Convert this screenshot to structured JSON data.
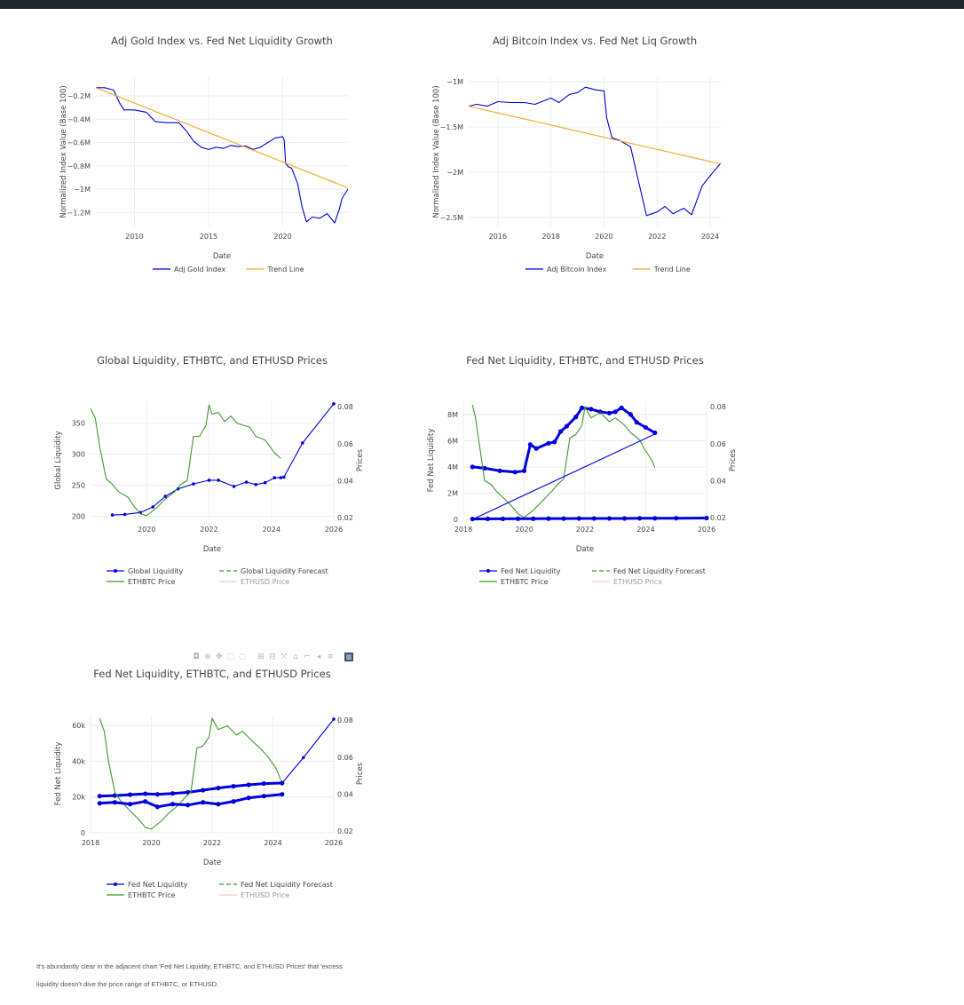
{
  "page": {
    "footer_line1": "It's abundantly clear in the adjacent chart 'Fed Net Liquidity, ETHBTC, and ETHUSD Prices' that 'excess",
    "footer_line2": "liquidity doesn't dive the price range of ETHBTC, or ETHUSD."
  },
  "modebar": {
    "icons": [
      "camera-icon",
      "zoom-icon",
      "pan-icon",
      "box-select-icon",
      "lasso-icon",
      "zoom-in-icon",
      "zoom-out-icon",
      "autoscale-icon",
      "reset-axes-icon",
      "spike-lines-icon",
      "hover-closest-icon",
      "hover-compare-icon",
      "plotly-logo-icon"
    ]
  },
  "colors": {
    "blue": "#0000dd",
    "orange": "#f5a623",
    "green": "#3c9a2c",
    "pink": "#f0a0a0",
    "grid": "#eeeeee"
  },
  "chart_data": [
    {
      "id": "gold",
      "type": "line",
      "title": "Adj Gold Index vs. Fed Net Liquidity Growth",
      "xlabel": "Date",
      "ylabel": "Normalized Index Value (Base 100)",
      "xlim": [
        2007.4,
        2024.4
      ],
      "ylim": [
        -1320000,
        -40000
      ],
      "x_ticks": [
        2010,
        2015,
        2020
      ],
      "y_ticks": [
        -200000,
        -400000,
        -600000,
        -800000,
        -1000000,
        -1200000
      ],
      "y_tick_labels": [
        "−0.2M",
        "−0.4M",
        "−0.6M",
        "−0.8M",
        "−1M",
        "−1.2M"
      ],
      "legend_position": "bottom-center",
      "series": [
        {
          "name": "Adj Gold Index",
          "color": "#0000dd",
          "x": [
            2007.4,
            2008,
            2008.6,
            2009,
            2009.3,
            2010,
            2010.8,
            2011.4,
            2012.2,
            2013,
            2013.5,
            2014,
            2014.5,
            2015,
            2015.5,
            2016,
            2016.5,
            2017,
            2017.5,
            2018,
            2018.5,
            2019,
            2019.5,
            2020,
            2020.1,
            2020.2,
            2020.4,
            2020.6,
            2021,
            2021.3,
            2021.6,
            2022,
            2022.5,
            2023,
            2023.5,
            2023.8,
            2024,
            2024.4
          ],
          "y": [
            -130000,
            -130000,
            -150000,
            -260000,
            -320000,
            -320000,
            -340000,
            -420000,
            -430000,
            -430000,
            -500000,
            -590000,
            -640000,
            -660000,
            -640000,
            -650000,
            -625000,
            -635000,
            -630000,
            -660000,
            -640000,
            -600000,
            -560000,
            -550000,
            -580000,
            -780000,
            -810000,
            -820000,
            -950000,
            -1150000,
            -1280000,
            -1240000,
            -1250000,
            -1210000,
            -1290000,
            -1180000,
            -1080000,
            -1000000
          ]
        },
        {
          "name": "Trend Line",
          "color": "#f5a623",
          "x": [
            2007.4,
            2024.4
          ],
          "y": [
            -130000,
            -990000
          ]
        }
      ]
    },
    {
      "id": "bitcoin",
      "type": "line",
      "title": "Adj Bitcoin Index vs. Fed Net Liq Growth",
      "xlabel": "Date",
      "ylabel": "Normalized Index Value (Base 100)",
      "xlim": [
        2014.9,
        2024.4
      ],
      "ylim": [
        -2600000,
        -950000
      ],
      "x_ticks": [
        2016,
        2018,
        2020,
        2022,
        2024
      ],
      "y_ticks": [
        -1000000,
        -1500000,
        -2000000,
        -2500000
      ],
      "y_tick_labels": [
        "−1M",
        "−1.5M",
        "−2M",
        "−2.5M"
      ],
      "legend_position": "bottom-center",
      "series": [
        {
          "name": "Adj Bitcoin Index",
          "color": "#0000dd",
          "x": [
            2014.9,
            2015.2,
            2015.6,
            2016,
            2016.5,
            2017,
            2017.4,
            2018,
            2018.3,
            2018.7,
            2019,
            2019.3,
            2019.7,
            2020,
            2020.1,
            2020.3,
            2020.6,
            2021,
            2021.3,
            2021.6,
            2022,
            2022.3,
            2022.6,
            2023,
            2023.3,
            2023.7,
            2024,
            2024.4
          ],
          "y": [
            -1270000,
            -1250000,
            -1270000,
            -1220000,
            -1230000,
            -1230000,
            -1250000,
            -1180000,
            -1230000,
            -1140000,
            -1120000,
            -1060000,
            -1090000,
            -1100000,
            -1400000,
            -1620000,
            -1650000,
            -1720000,
            -2100000,
            -2480000,
            -2440000,
            -2380000,
            -2460000,
            -2400000,
            -2470000,
            -2150000,
            -2040000,
            -1900000
          ]
        },
        {
          "name": "Trend Line",
          "color": "#f5a623",
          "x": [
            2014.9,
            2024.4
          ],
          "y": [
            -1270000,
            -1910000
          ]
        }
      ]
    },
    {
      "id": "global",
      "type": "line",
      "title": "Global Liquidity, ETHBTC, and ETHUSD Prices",
      "xlabel": "Date",
      "ylabel": "Global Liquidity",
      "y2label": "Prices",
      "xlim": [
        2018.2,
        2026
      ],
      "ylim": [
        195,
        385
      ],
      "y2lim": [
        0.019,
        0.083
      ],
      "x_ticks": [
        2020,
        2022,
        2024,
        2026
      ],
      "y_ticks": [
        200,
        250,
        300,
        350
      ],
      "y2_ticks": [
        0.02,
        0.04,
        0.06,
        0.08
      ],
      "legend_position": "bottom",
      "series": [
        {
          "name": "Global Liquidity",
          "color": "#0000dd",
          "axis": "y",
          "markers": true,
          "x": [
            2018.9,
            2019.3,
            2019.8,
            2020.2,
            2020.6,
            2021,
            2021.5,
            2022,
            2022.3,
            2022.8,
            2023.2,
            2023.5,
            2023.8,
            2024.1,
            2024.3
          ],
          "y": [
            202,
            203,
            206,
            215,
            232,
            244,
            252,
            258,
            258,
            248,
            255,
            251,
            254,
            262,
            262
          ]
        },
        {
          "name": "Global Liquidity Forecast",
          "color": "#3c9a2c",
          "axis": "y",
          "dash": true,
          "x": [],
          "y": []
        },
        {
          "name": "ETHBTC Price",
          "color": "#3c9a2c",
          "axis": "y2",
          "x": [
            2018.2,
            2018.35,
            2018.5,
            2018.7,
            2018.9,
            2019.1,
            2019.4,
            2019.6,
            2019.8,
            2020,
            2020.3,
            2020.6,
            2020.9,
            2021.1,
            2021.3,
            2021.5,
            2021.7,
            2021.9,
            2022,
            2022.1,
            2022.3,
            2022.5,
            2022.7,
            2022.9,
            2023.1,
            2023.3,
            2023.5,
            2023.8,
            2024.1,
            2024.3
          ],
          "y": [
            0.079,
            0.074,
            0.058,
            0.041,
            0.038,
            0.034,
            0.031,
            0.026,
            0.022,
            0.021,
            0.025,
            0.03,
            0.034,
            0.038,
            0.04,
            0.064,
            0.064,
            0.07,
            0.081,
            0.076,
            0.077,
            0.072,
            0.075,
            0.071,
            0.07,
            0.069,
            0.064,
            0.062,
            0.055,
            0.052
          ]
        },
        {
          "name": "ETHUSD Price",
          "color": "#f0a0a0",
          "axis": "y2",
          "faded": true,
          "x": [],
          "y": []
        },
        {
          "name": "Forecast points",
          "color": "#0000dd",
          "axis": "y",
          "markers": true,
          "nolegend": true,
          "x": [
            2024.4,
            2025,
            2026
          ],
          "y": [
            263,
            318,
            381
          ]
        }
      ]
    },
    {
      "id": "fednet1",
      "type": "line",
      "title": "Fed Net Liquidity, ETHBTC, and ETHUSD Prices",
      "xlabel": "Date",
      "ylabel": "Fed Net Liquidity",
      "y2label": "Prices",
      "xlim": [
        2018,
        2026
      ],
      "ylim": [
        0,
        9000000
      ],
      "y2lim": [
        0.019,
        0.083
      ],
      "x_ticks": [
        2018,
        2020,
        2022,
        2024,
        2026
      ],
      "y_ticks": [
        0,
        2000000,
        4000000,
        6000000,
        8000000
      ],
      "y_tick_labels": [
        "0",
        "2M",
        "4M",
        "6M",
        "8M"
      ],
      "y2_ticks": [
        0.02,
        0.04,
        0.06,
        0.08
      ],
      "legend_position": "bottom",
      "series": [
        {
          "name": "Fed Net Liquidity",
          "color": "#0000dd",
          "axis": "y",
          "markers": true,
          "x": [
            2018.3,
            2018.7,
            2019.2,
            2019.7,
            2020,
            2020.2,
            2020.4,
            2020.8,
            2021,
            2021.2,
            2021.4,
            2021.7,
            2021.9,
            2022.2,
            2022.5,
            2022.8,
            2023,
            2023.2,
            2023.5,
            2023.7,
            2024,
            2024.3
          ],
          "y": [
            4000000,
            3900000,
            3700000,
            3600000,
            3700000,
            5700000,
            5400000,
            5800000,
            5900000,
            6700000,
            7100000,
            7800000,
            8500000,
            8400000,
            8200000,
            8100000,
            8200000,
            8500000,
            8000000,
            7400000,
            7000000,
            6600000
          ]
        },
        {
          "name": "Fed Net Liquidity Forecast",
          "color": "#3c9a2c",
          "axis": "y",
          "dash": true,
          "x": [],
          "y": []
        },
        {
          "name": "ETHBTC Price",
          "color": "#3c9a2c",
          "axis": "y2",
          "x": [
            2018.3,
            2018.4,
            2018.55,
            2018.7,
            2018.9,
            2019.1,
            2019.3,
            2019.6,
            2019.8,
            2020,
            2020.3,
            2020.6,
            2020.9,
            2021.1,
            2021.3,
            2021.5,
            2021.7,
            2021.9,
            2022,
            2022.2,
            2022.5,
            2022.8,
            2023,
            2023.3,
            2023.5,
            2023.8,
            2024,
            2024.2,
            2024.3
          ],
          "y": [
            0.081,
            0.074,
            0.057,
            0.04,
            0.038,
            0.034,
            0.031,
            0.026,
            0.022,
            0.02,
            0.024,
            0.029,
            0.034,
            0.038,
            0.041,
            0.063,
            0.065,
            0.07,
            0.08,
            0.074,
            0.077,
            0.072,
            0.074,
            0.07,
            0.066,
            0.062,
            0.056,
            0.051,
            0.047
          ]
        },
        {
          "name": "ETHUSD Price",
          "color": "#f0a0a0",
          "axis": "y2",
          "faded": true,
          "x": [],
          "y": []
        },
        {
          "name": "Trend",
          "color": "#0000dd",
          "axis": "y",
          "nolegend": true,
          "x": [
            2018.3,
            2024.3
          ],
          "y": [
            0,
            6500000
          ]
        },
        {
          "name": "Base",
          "color": "#0000dd",
          "axis": "y",
          "markers": true,
          "nolegend": true,
          "x": [
            2018.3,
            2018.8,
            2019.3,
            2019.8,
            2020.3,
            2020.8,
            2021.3,
            2021.8,
            2022.3,
            2022.8,
            2023.3,
            2023.8,
            2024.3,
            2025,
            2026
          ],
          "y": [
            30000,
            40000,
            40000,
            50000,
            50000,
            60000,
            60000,
            70000,
            70000,
            70000,
            70000,
            80000,
            80000,
            90000,
            100000
          ]
        }
      ]
    },
    {
      "id": "fednet2",
      "type": "line",
      "title": "Fed Net Liquidity, ETHBTC, and ETHUSD Prices",
      "xlabel": "Date",
      "ylabel": "Fed Net Liquidity",
      "y2label": "Prices",
      "xlim": [
        2018,
        2026
      ],
      "ylim": [
        0,
        66000
      ],
      "y2lim": [
        0.019,
        0.083
      ],
      "x_ticks": [
        2018,
        2020,
        2022,
        2024,
        2026
      ],
      "y_ticks": [
        0,
        20000,
        40000,
        60000
      ],
      "y_tick_labels": [
        "0",
        "20k",
        "40k",
        "60k"
      ],
      "y2_ticks": [
        0.02,
        0.04,
        0.06,
        0.08
      ],
      "legend_position": "bottom",
      "series": [
        {
          "name": "Fed Net Liquidity",
          "color": "#0000dd",
          "axis": "y",
          "markers": true,
          "x": [
            2018.3,
            2018.8,
            2019.3,
            2019.8,
            2020.2,
            2020.7,
            2021.2,
            2021.7,
            2022.2,
            2022.7,
            2023.2,
            2023.7,
            2024.3
          ],
          "y": [
            20500,
            20800,
            21300,
            21800,
            21500,
            22000,
            22600,
            23800,
            25000,
            26000,
            26800,
            27500,
            27800
          ]
        },
        {
          "name": "Fed Net Liquidity Forecast",
          "color": "#3c9a2c",
          "axis": "y",
          "dash": true,
          "x": [],
          "y": []
        },
        {
          "name": "ETHBTC Price",
          "color": "#3c9a2c",
          "axis": "y2",
          "x": [
            2018.3,
            2018.45,
            2018.6,
            2018.8,
            2019,
            2019.3,
            2019.6,
            2019.8,
            2020,
            2020.3,
            2020.6,
            2020.9,
            2021.1,
            2021.3,
            2021.5,
            2021.7,
            2021.9,
            2022,
            2022.2,
            2022.5,
            2022.8,
            2023,
            2023.3,
            2023.5,
            2023.8,
            2024.1,
            2024.3
          ],
          "y": [
            0.081,
            0.074,
            0.057,
            0.041,
            0.036,
            0.031,
            0.026,
            0.022,
            0.021,
            0.025,
            0.03,
            0.034,
            0.038,
            0.041,
            0.065,
            0.066,
            0.071,
            0.081,
            0.075,
            0.077,
            0.072,
            0.074,
            0.069,
            0.066,
            0.061,
            0.054,
            0.046
          ]
        },
        {
          "name": "ETHUSD Price",
          "color": "#f0a0a0",
          "axis": "y2",
          "faded": true,
          "x": [],
          "y": []
        },
        {
          "name": "Secondary",
          "color": "#0000dd",
          "axis": "y",
          "markers": true,
          "nolegend": true,
          "x": [
            2018.3,
            2018.8,
            2019.3,
            2019.8,
            2020.2,
            2020.7,
            2021.2,
            2021.7,
            2022.2,
            2022.7,
            2023.2,
            2023.7,
            2024.3
          ],
          "y": [
            16500,
            17000,
            16000,
            17500,
            14500,
            16000,
            15500,
            17000,
            16000,
            17500,
            19500,
            20500,
            21500
          ]
        },
        {
          "name": "Forecast",
          "color": "#0000dd",
          "axis": "y",
          "markers": true,
          "nolegend": true,
          "x": [
            2024.3,
            2025,
            2026
          ],
          "y": [
            27800,
            42000,
            63500
          ]
        }
      ]
    }
  ]
}
